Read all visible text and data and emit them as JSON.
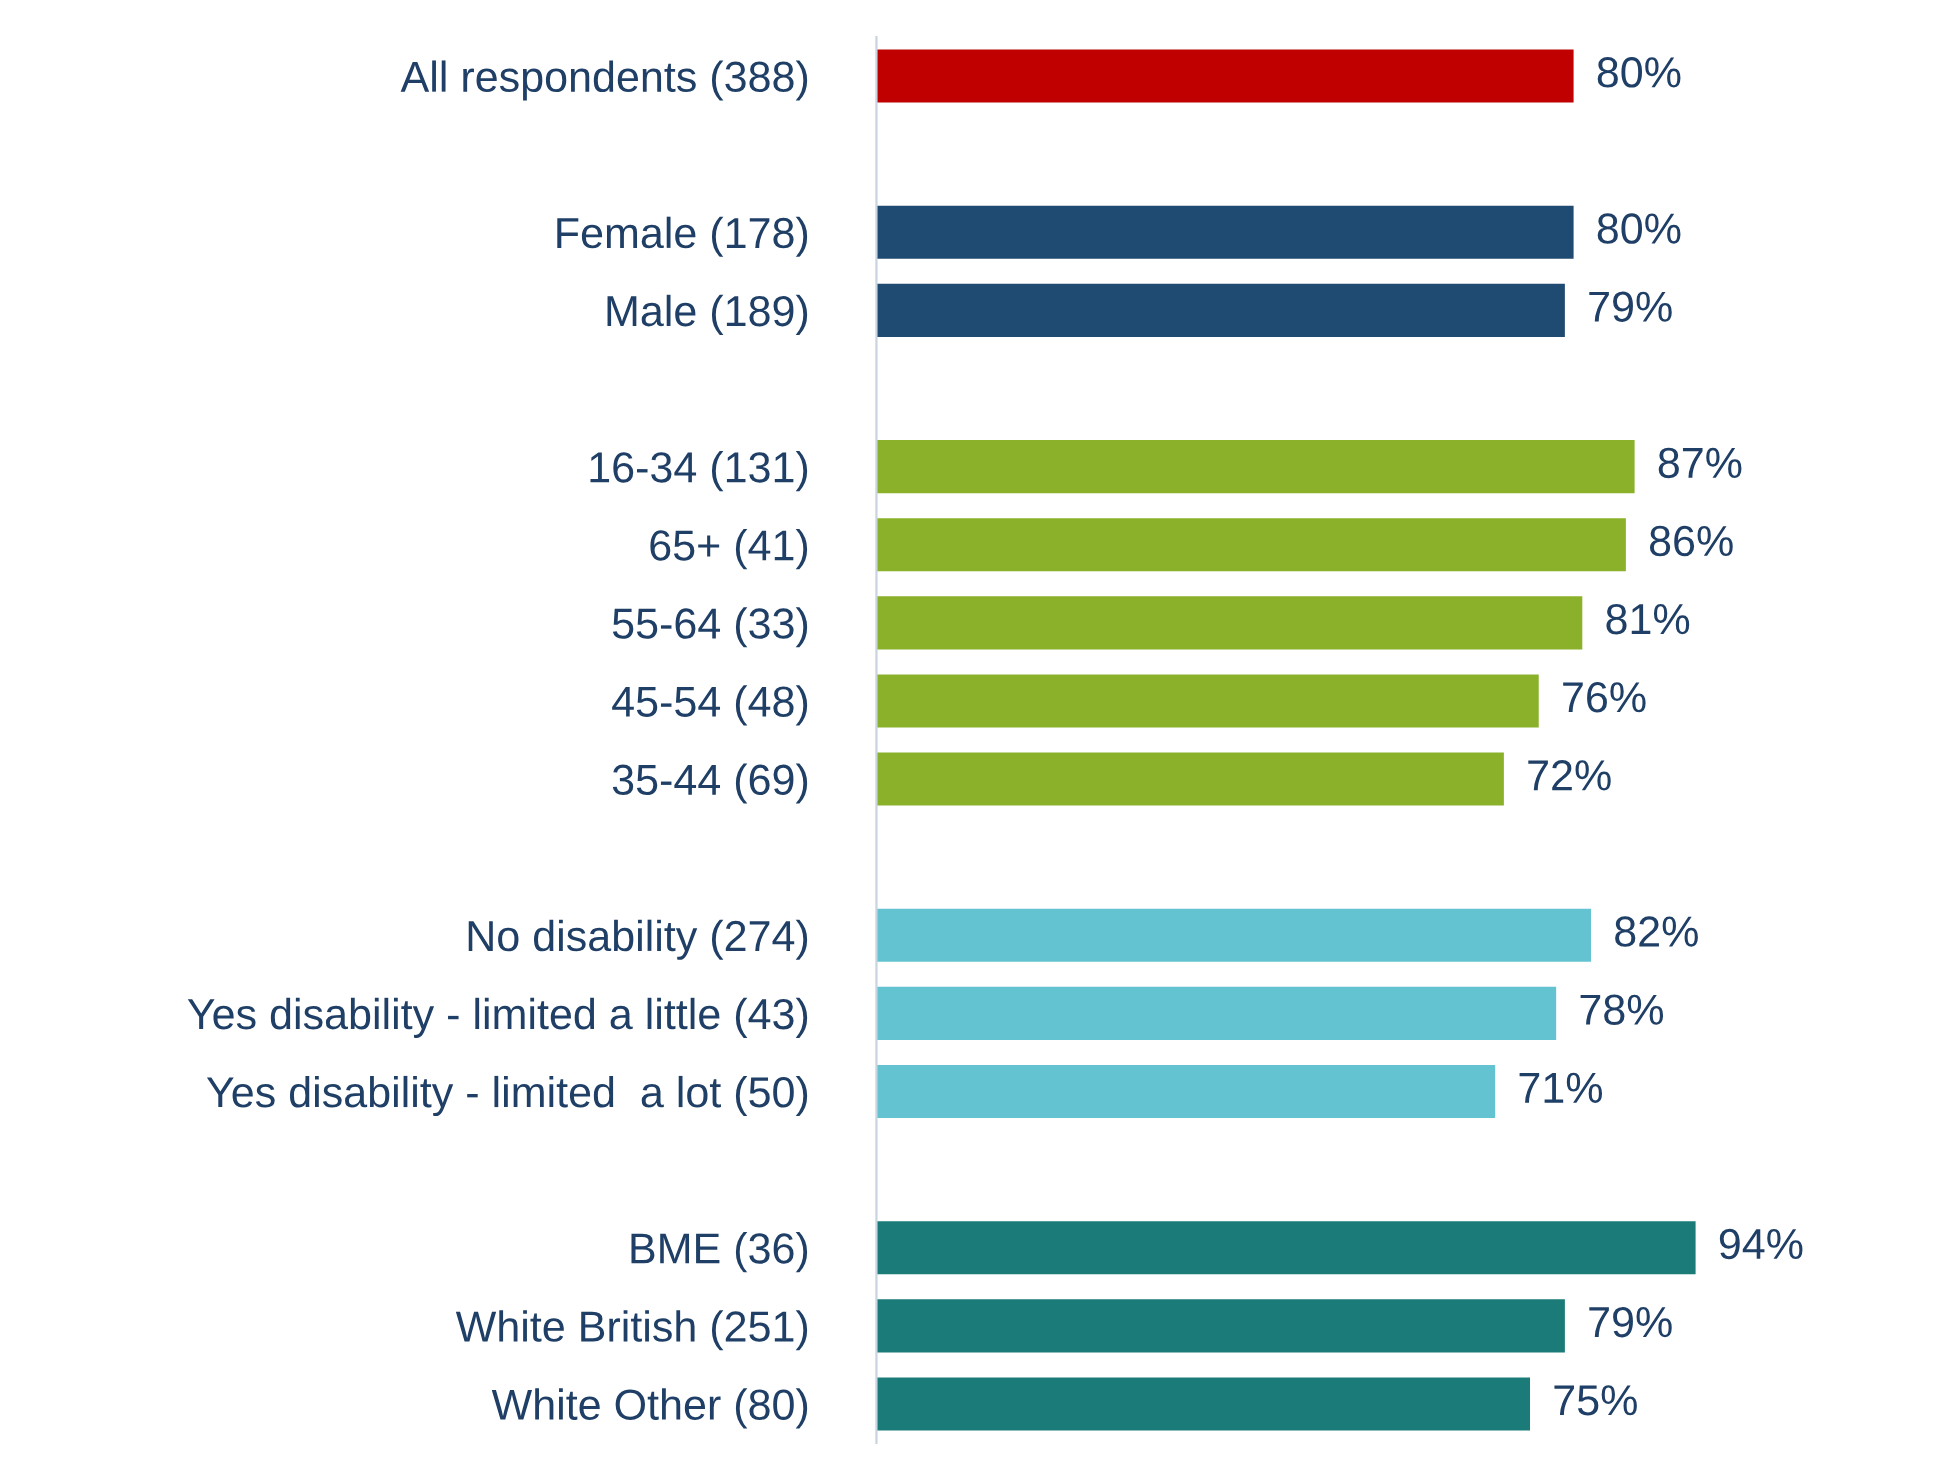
{
  "chart_data": {
    "type": "bar",
    "orientation": "horizontal",
    "legend": false,
    "grid": false,
    "tick_labels": "y",
    "value_labels": [
      "80%",
      null,
      "80%",
      "79%",
      null,
      "87%",
      "86%",
      "81%",
      "76%",
      "72%",
      null,
      "82%",
      "78%",
      "71%",
      null,
      "94%",
      "79%",
      "75%"
    ],
    "categories": [
      "All respondents (388)",
      null,
      "Female (178)",
      "Male (189)",
      null,
      "16-34 (131)",
      "65+ (41)",
      "55-64 (33)",
      "45-54 (48)",
      "35-44 (69)",
      null,
      "No disability (274)",
      "Yes disability - limited a little (43)",
      "Yes disability - limited  a lot (50)",
      null,
      "BME (36)",
      "White British (251)",
      "White Other (80)"
    ],
    "values": [
      80,
      null,
      80,
      79,
      null,
      87,
      86,
      81,
      76,
      72,
      null,
      82,
      78,
      71,
      null,
      94,
      79,
      75
    ],
    "colors": [
      "#c00000",
      null,
      "#1f4a72",
      "#1f4a72",
      null,
      "#8bb02a",
      "#8bb02a",
      "#8bb02a",
      "#8bb02a",
      "#8bb02a",
      null,
      "#63c3d1",
      "#63c3d1",
      "#63c3d1",
      null,
      "#1a7b78",
      "#1a7b78",
      "#1a7b78"
    ]
  }
}
